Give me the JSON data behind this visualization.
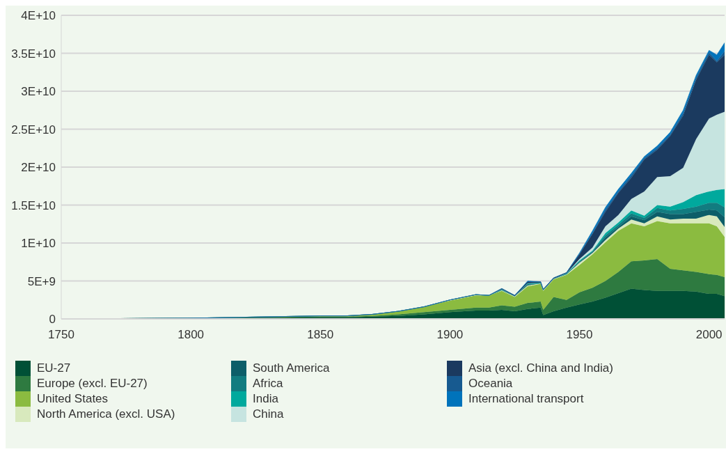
{
  "chart_data": {
    "type": "area",
    "stacked": true,
    "x": [
      1750,
      1800,
      1850,
      1860,
      1870,
      1880,
      1890,
      1900,
      1910,
      1915,
      1920,
      1925,
      1930,
      1935,
      1936,
      1940,
      1945,
      1950,
      1955,
      1960,
      1965,
      1970,
      1975,
      1980,
      1985,
      1990,
      1995,
      2000,
      2003,
      2006
    ],
    "series": [
      {
        "name": "EU-27",
        "color": "#005036",
        "values": [
          0,
          100000000.0,
          200000000.0,
          200000000.0,
          300000000.0,
          400000000.0,
          600000000.0,
          900000000.0,
          1100000000.0,
          1100000000.0,
          1200000000.0,
          1000000000.0,
          1300000000.0,
          1500000000.0,
          500000000.0,
          1000000000.0,
          1500000000.0,
          1900000000.0,
          2300000000.0,
          2800000000.0,
          3400000000.0,
          4000000000.0,
          3800000000.0,
          3700000000.0,
          3700000000.0,
          3700000000.0,
          3600000000.0,
          3300000000.0,
          3300000000.0,
          3000000000.0
        ]
      },
      {
        "name": "Europe (excl. EU-27)",
        "color": "#2e7a40",
        "values": [
          0,
          0,
          100000000.0,
          100000000.0,
          100000000.0,
          200000000.0,
          300000000.0,
          300000000.0,
          400000000.0,
          400000000.0,
          600000000.0,
          600000000.0,
          800000000.0,
          800000000.0,
          700000000.0,
          1900000000.0,
          1000000000.0,
          1600000000.0,
          1800000000.0,
          2200000000.0,
          2800000000.0,
          3600000000.0,
          3900000000.0,
          4200000000.0,
          2900000000.0,
          2700000000.0,
          2600000000.0,
          2600000000.0,
          2500000000.0,
          2500000000.0
        ]
      },
      {
        "name": "United States",
        "color": "#8bbb40",
        "values": [
          0,
          0,
          100000000.0,
          100000000.0,
          200000000.0,
          400000000.0,
          700000000.0,
          1200000000.0,
          1600000000.0,
          1600000000.0,
          1900000000.0,
          1300000000.0,
          2200000000.0,
          2300000000.0,
          2500000000.0,
          2300000000.0,
          3300000000.0,
          3600000000.0,
          4400000000.0,
          5100000000.0,
          5400000000.0,
          5000000000.0,
          4500000000.0,
          5000000000.0,
          6000000000.0,
          6200000000.0,
          6400000000.0,
          6700000000.0,
          6400000000.0,
          5300000000.0
        ]
      },
      {
        "name": "North America (excl. USA)",
        "color": "#d8e9bd",
        "values": [
          0,
          0,
          0,
          0,
          0,
          0,
          0,
          100000000.0,
          100000000.0,
          0,
          100000000.0,
          100000000.0,
          100000000.0,
          100000000.0,
          100000000.0,
          100000000.0,
          100000000.0,
          300000000.0,
          200000000.0,
          300000000.0,
          300000000.0,
          500000000.0,
          400000000.0,
          600000000.0,
          500000000.0,
          600000000.0,
          600000000.0,
          1100000000.0,
          1300000000.0,
          1300000000.0
        ]
      },
      {
        "name": "South America",
        "color": "#0d5e69",
        "values": [
          0,
          0,
          0,
          0,
          0,
          0,
          0,
          0,
          0,
          0,
          0,
          0,
          100000000.0,
          0,
          0,
          0,
          0,
          100000000.0,
          100000000.0,
          300000000.0,
          200000000.0,
          400000000.0,
          400000000.0,
          600000000.0,
          700000000.0,
          600000000.0,
          900000000.0,
          700000000.0,
          800000000.0,
          1300000000.0
        ]
      },
      {
        "name": "Africa",
        "color": "#127c80",
        "values": [
          0,
          0,
          0,
          0,
          0,
          0,
          0,
          0,
          0,
          0,
          0,
          0,
          100000000.0,
          0,
          0,
          0,
          0,
          100000000.0,
          100000000.0,
          300000000.0,
          300000000.0,
          400000000.0,
          300000000.0,
          500000000.0,
          500000000.0,
          700000000.0,
          700000000.0,
          900000000.0,
          1000000000.0,
          1300000000.0
        ]
      },
      {
        "name": "India",
        "color": "#00a99d",
        "values": [
          0,
          0,
          0,
          0,
          0,
          0,
          0,
          0,
          0,
          0,
          100000000.0,
          0,
          100000000.0,
          100000000.0,
          0,
          0,
          100000000.0,
          100000000.0,
          100000000.0,
          300000000.0,
          300000000.0,
          400000000.0,
          300000000.0,
          400000000.0,
          500000000.0,
          900000000.0,
          1500000000.0,
          1500000000.0,
          1700000000.0,
          2400000000.0
        ]
      },
      {
        "name": "China",
        "color": "#c6e4e0",
        "values": [
          0,
          0,
          0,
          0,
          0,
          0,
          0,
          0,
          0,
          0,
          0,
          0,
          0,
          0,
          0,
          0,
          0,
          200000000.0,
          400000000.0,
          900000000.0,
          1000000000.0,
          1500000000.0,
          3200000000.0,
          3700000000.0,
          4000000000.0,
          4500000000.0,
          7400000000.0,
          9600000000.0,
          9900000000.0,
          10200000000.0
        ]
      },
      {
        "name": "Asia (excl. China and India)",
        "color": "#1b3a5f",
        "values": [
          0,
          0,
          0,
          0,
          0,
          0,
          0,
          0,
          0,
          0,
          100000000.0,
          100000000.0,
          200000000.0,
          100000000.0,
          100000000.0,
          100000000.0,
          100000000.0,
          600000000.0,
          1800000000.0,
          1900000000.0,
          2900000000.0,
          2800000000.0,
          4200000000.0,
          3600000000.0,
          5300000000.0,
          6900000000.0,
          7800000000.0,
          8400000000.0,
          6900000000.0,
          7500000000.0
        ]
      },
      {
        "name": "Oceania",
        "color": "#175a90",
        "values": [
          0,
          0,
          0,
          0,
          0,
          0,
          0,
          0,
          0,
          0,
          0,
          0,
          0,
          0,
          0,
          0,
          0,
          100000000.0,
          100000000.0,
          300000000.0,
          200000000.0,
          300000000.0,
          200000000.0,
          200000000.0,
          200000000.0,
          300000000.0,
          300000000.0,
          300000000.0,
          200000000.0,
          500000000.0
        ]
      },
      {
        "name": "International transport",
        "color": "#0073bb",
        "values": [
          0,
          0,
          0,
          0,
          0,
          0,
          0,
          0,
          0,
          0,
          0,
          0,
          100000000.0,
          0,
          0,
          0,
          0,
          100000000.0,
          300000000.0,
          300000000.0,
          300000000.0,
          300000000.0,
          200000000.0,
          300000000.0,
          300000000.0,
          400000000.0,
          300000000.0,
          300000000.0,
          800000000.0,
          1100000000.0
        ]
      }
    ],
    "xlim": [
      1750,
      2006
    ],
    "xticks": [
      1750,
      1800,
      1850,
      1900,
      1950,
      2000
    ],
    "ylim": [
      0,
      40000000000.0
    ],
    "yticks": [
      0,
      {
        "value": 5000000000.0,
        "label": "5E+9"
      },
      {
        "value": 10000000000.0,
        "label": "1E+10"
      },
      {
        "value": 15000000000.0,
        "label": "1.5E+10"
      },
      {
        "value": 20000000000.0,
        "label": "2E+10"
      },
      {
        "value": 25000000000.0,
        "label": "2.5E+10"
      },
      {
        "value": 30000000000.0,
        "label": "3E+10"
      },
      {
        "value": 35000000000.0,
        "label": "3.5E+10"
      },
      {
        "value": 40000000000.0,
        "label": "4E+10"
      }
    ],
    "grid": "y",
    "legend": "bottom left"
  }
}
